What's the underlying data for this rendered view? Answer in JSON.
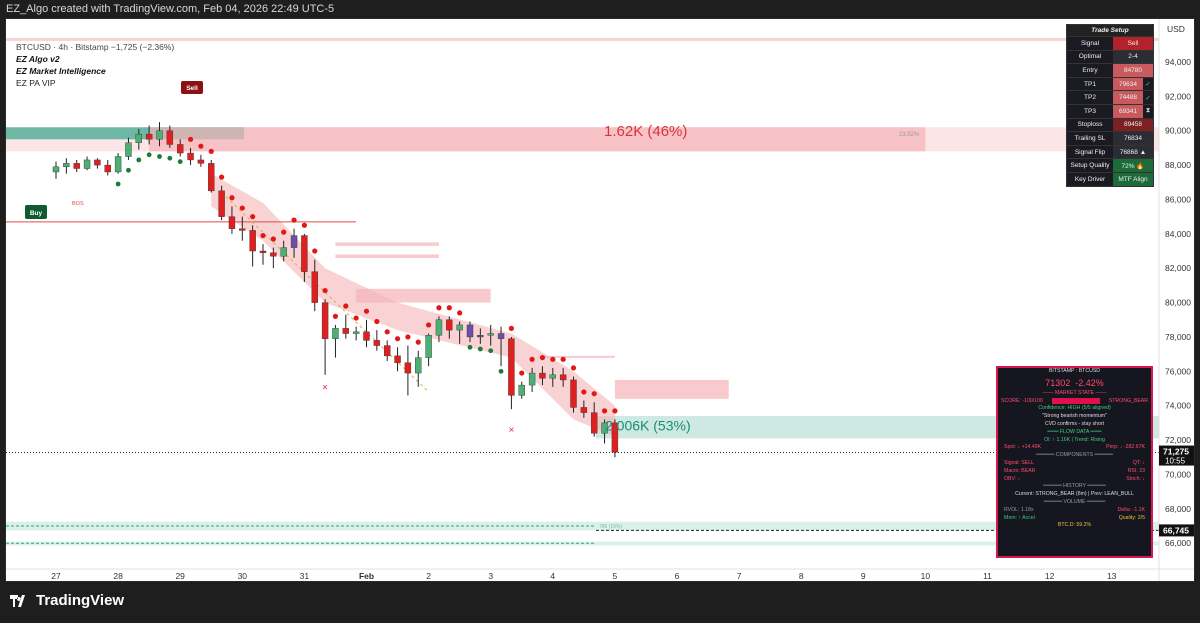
{
  "header": {
    "title": "EZ_Algo created with TradingView.com, Feb 04, 2026 22:49 UTC-5"
  },
  "legend": {
    "symbol_line": "BTCUSD · 4h · Bitstamp  −1,725 (−2.36%)",
    "indicators": [
      "EZ Algo v2",
      "EZ Market Intelligence",
      "EZ PA VIP"
    ]
  },
  "footer": {
    "brand": "TradingView"
  },
  "trade_setup": {
    "title": "Trade Setup",
    "rows": [
      {
        "key": "Signal",
        "value": "Sell",
        "style": "red"
      },
      {
        "key": "Optimal",
        "value": "2-4",
        "style": "dark"
      },
      {
        "key": "Entry",
        "value": "84780",
        "style": "rose"
      },
      {
        "key": "TP1",
        "value": "79634",
        "mark": "✓",
        "style": "rose"
      },
      {
        "key": "TP2",
        "value": "74488",
        "mark": "✓",
        "style": "rose"
      },
      {
        "key": "TP3",
        "value": "69341",
        "mark": "⧗",
        "style": "rose"
      },
      {
        "key": "Stoploss",
        "value": "89458",
        "style": "dred"
      },
      {
        "key": "Trailing SL",
        "value": "76834",
        "style": "dark"
      },
      {
        "key": "Signal Flip",
        "value": "76868 ▲",
        "style": "dark"
      },
      {
        "key": "Setup Quality",
        "value": "72% 🔥",
        "style": "green"
      },
      {
        "key": "Key Driver",
        "value": "MTF Align",
        "style": "green"
      }
    ]
  },
  "intel": {
    "title": "BITSTAMP : BTCUSD",
    "price": "71302",
    "change": "-2.42%",
    "market_state": "─── MARKET STATE ───",
    "score_label": "SCORE: -100/100",
    "score_state": "STRONG_BEAR",
    "confidence": "Confidence: HIGH (5/5 aligned)",
    "momentum": "\"Strong bearish momentum\"",
    "cvd": "CVD confirms - stay short",
    "flow_header": "═══ FLOW DATA ═══",
    "oi": "OI: ↑ 1.16K | Trend: Rising",
    "spot": "Spot: ↓ +14.49K",
    "perp": "Perp: ↓ -282.67K",
    "components_header": "═════ COMPONENTS ═════",
    "signal": "Signal: SELL",
    "qt": "QT: ↓",
    "macro": "Macro: BEAR",
    "rsi": "RSI: 23",
    "obv": "OBV: ↓",
    "stoch": "Stoch: ↓",
    "history_header": "═════ HISTORY ═════",
    "history": "Current: STRONG_BEAR (8m) | Prev: LEAN_BULL",
    "volume_header": "═════ VOLUME ═════",
    "rvol": "RVOL: 1.18x",
    "delta": "Delta: -1.1K",
    "mom": "Mom: ↑ Accel",
    "quality": "Quality: 2/5",
    "btcd": "BTC.D: 59.2%"
  },
  "chart_data": {
    "type": "candlestick",
    "symbol": "BTCUSD",
    "timeframe": "4h",
    "exchange": "Bitstamp",
    "ylim": [
      64500,
      96500
    ],
    "y_ticks": [
      66000,
      68000,
      70000,
      72000,
      74000,
      76000,
      78000,
      80000,
      82000,
      84000,
      86000,
      88000,
      90000,
      92000,
      94000
    ],
    "y_tick_labels": [
      "66,000",
      "68,000",
      "70,000",
      "72,000",
      "74,000",
      "76,000",
      "78,000",
      "80,000",
      "82,000",
      "84,000",
      "86,000",
      "88,000",
      "90,000",
      "92,000",
      "94,000"
    ],
    "y_unit": "USD",
    "x_tick_labels": [
      "27",
      "28",
      "29",
      "30",
      "31",
      "Feb",
      "2",
      "3",
      "4",
      "5",
      "6",
      "7",
      "8",
      "9",
      "10",
      "11",
      "12",
      "13"
    ],
    "x_tick_index": [
      0,
      6,
      12,
      18,
      24,
      30,
      36,
      42,
      48,
      54,
      60,
      66,
      72,
      78,
      84,
      90,
      96,
      102
    ],
    "current_price_label": "71,275",
    "countdown": "10:55",
    "target_price_label": "66,745",
    "candles": [
      [
        87600,
        88200,
        87200,
        87900
      ],
      [
        87900,
        88400,
        87500,
        88100
      ],
      [
        88100,
        88300,
        87600,
        87800
      ],
      [
        87800,
        88500,
        87700,
        88300
      ],
      [
        88300,
        88400,
        87800,
        88000
      ],
      [
        88000,
        88300,
        87400,
        87600
      ],
      [
        87600,
        88700,
        87500,
        88500
      ],
      [
        88500,
        89600,
        88300,
        89300
      ],
      [
        89300,
        90100,
        88900,
        89800
      ],
      [
        89800,
        90300,
        89200,
        89500
      ],
      [
        89500,
        90500,
        89100,
        90000
      ],
      [
        90000,
        90300,
        89000,
        89200
      ],
      [
        89200,
        89500,
        88500,
        88700
      ],
      [
        88700,
        89000,
        88000,
        88300
      ],
      [
        88300,
        88600,
        87900,
        88100
      ],
      [
        88100,
        88300,
        86400,
        86500
      ],
      [
        86500,
        86800,
        84800,
        85000
      ],
      [
        85000,
        85600,
        84000,
        84300
      ],
      [
        84300,
        85000,
        83600,
        84200
      ],
      [
        84200,
        84500,
        82100,
        83000
      ],
      [
        83000,
        83400,
        82200,
        82900
      ],
      [
        82900,
        83200,
        82000,
        82700
      ],
      [
        82700,
        83600,
        82400,
        83200
      ],
      [
        83200,
        84300,
        82600,
        83900
      ],
      [
        83900,
        84000,
        81200,
        81800
      ],
      [
        81800,
        82500,
        79500,
        80000
      ],
      [
        80000,
        80200,
        75800,
        77900
      ],
      [
        77900,
        78700,
        76800,
        78500
      ],
      [
        78500,
        79300,
        77900,
        78200
      ],
      [
        78200,
        78600,
        77800,
        78300
      ],
      [
        78300,
        79000,
        77400,
        77800
      ],
      [
        77800,
        78400,
        77200,
        77500
      ],
      [
        77500,
        77800,
        76600,
        76900
      ],
      [
        76900,
        77400,
        76000,
        76500
      ],
      [
        76500,
        77500,
        74600,
        75900
      ],
      [
        75900,
        77200,
        75100,
        76800
      ],
      [
        76800,
        78200,
        76300,
        78100
      ],
      [
        78100,
        79200,
        77700,
        79000
      ],
      [
        79000,
        79200,
        77900,
        78400
      ],
      [
        78400,
        78900,
        77600,
        78700
      ],
      [
        78700,
        78900,
        77700,
        78000
      ],
      [
        78000,
        78500,
        77600,
        78100
      ],
      [
        78100,
        78700,
        77500,
        78200
      ],
      [
        78200,
        78600,
        76300,
        77900
      ],
      [
        77900,
        78000,
        73800,
        74600
      ],
      [
        74600,
        75400,
        74400,
        75200
      ],
      [
        75200,
        76200,
        74800,
        75900
      ],
      [
        75900,
        76300,
        75200,
        75600
      ],
      [
        75600,
        76200,
        75100,
        75800
      ],
      [
        75800,
        76200,
        75100,
        75500
      ],
      [
        75500,
        75700,
        73600,
        73900
      ],
      [
        73900,
        74300,
        73300,
        73600
      ],
      [
        73600,
        74200,
        72200,
        72400
      ],
      [
        72400,
        73200,
        71800,
        73000
      ],
      [
        73000,
        73200,
        71000,
        71300
      ]
    ],
    "annotations": {
      "sell_label": "Sell",
      "buy_label": "Buy",
      "bos_label": "BOS",
      "zone1_text": "1.62K (46%)",
      "zone1_pct": "23.52%",
      "zone2_text": "2.006K (53%)",
      "fib_text": "786 (19%)"
    },
    "colors": {
      "bull": "#4caf74",
      "bear": "#e02020",
      "neutral": "#6b4fa8",
      "zone": "#f5b4b8",
      "target_zone": "#cde9e2"
    }
  }
}
